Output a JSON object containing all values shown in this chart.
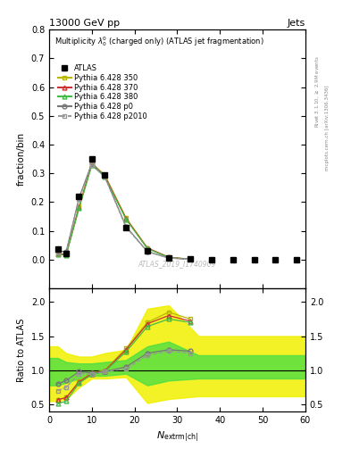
{
  "title_top": "13000 GeV pp",
  "title_right": "Jets",
  "plot_title": "Multiplicity $\\lambda_0^0$ (charged only) (ATLAS jet fragmentation)",
  "xlabel": "$N_{\\mathrm{extrm|ch|}}$",
  "ylabel_main": "fraction/bin",
  "ylabel_ratio": "Ratio to ATLAS",
  "watermark": "ATLAS_2019_I1740909",
  "right_label_top": "Rivet 3.1.10, $\\geq$ 2.9M events",
  "right_label_bot": "mcplots.cern.ch [arXiv:1306.3436]",
  "atlas_x": [
    2,
    4,
    7,
    10,
    13,
    18,
    23,
    28,
    33,
    38,
    43,
    48,
    53,
    58
  ],
  "atlas_y": [
    0.035,
    0.022,
    0.22,
    0.35,
    0.295,
    0.11,
    0.03,
    0.005,
    0.001,
    0.0,
    0.0,
    0.0,
    0.0,
    0.0
  ],
  "p350_x": [
    2,
    4,
    7,
    10,
    13,
    18,
    23,
    28,
    33
  ],
  "p350_y": [
    0.02,
    0.018,
    0.185,
    0.335,
    0.295,
    0.145,
    0.04,
    0.008,
    0.001
  ],
  "p350_color": "#b8b800",
  "p350_label": "Pythia 6.428 350",
  "p370_x": [
    2,
    4,
    7,
    10,
    13,
    18,
    23,
    28,
    33
  ],
  "p370_y": [
    0.02,
    0.018,
    0.182,
    0.332,
    0.292,
    0.143,
    0.04,
    0.008,
    0.001
  ],
  "p370_color": "#cc3333",
  "p370_label": "Pythia 6.428 370",
  "p380_x": [
    2,
    4,
    7,
    10,
    13,
    18,
    23,
    28,
    33
  ],
  "p380_y": [
    0.018,
    0.016,
    0.178,
    0.328,
    0.288,
    0.14,
    0.038,
    0.007,
    0.001
  ],
  "p380_color": "#44bb44",
  "p380_label": "Pythia 6.428 380",
  "p0_x": [
    2,
    4,
    7,
    10,
    13,
    18,
    23,
    28,
    33
  ],
  "p0_y": [
    0.028,
    0.028,
    0.215,
    0.335,
    0.29,
    0.115,
    0.028,
    0.005,
    0.001
  ],
  "p0_color": "#777777",
  "p0_label": "Pythia 6.428 p0",
  "p2010_x": [
    2,
    4,
    7,
    10,
    13,
    18,
    23,
    28,
    33
  ],
  "p2010_y": [
    0.025,
    0.025,
    0.21,
    0.33,
    0.288,
    0.112,
    0.027,
    0.005,
    0.001
  ],
  "p2010_color": "#999999",
  "p2010_label": "Pythia 6.428 p2010",
  "ratio_x": [
    2,
    4,
    7,
    10,
    13,
    18,
    23,
    28,
    33
  ],
  "ratio_p350": [
    0.57,
    0.6,
    0.84,
    0.96,
    1.0,
    1.32,
    1.7,
    1.85,
    1.75
  ],
  "ratio_p370": [
    0.57,
    0.6,
    0.83,
    0.95,
    0.99,
    1.3,
    1.68,
    1.8,
    1.72
  ],
  "ratio_p380": [
    0.51,
    0.55,
    0.81,
    0.94,
    0.98,
    1.27,
    1.64,
    1.75,
    1.7
  ],
  "ratio_p0": [
    0.8,
    0.85,
    0.98,
    0.96,
    0.98,
    1.05,
    1.25,
    1.3,
    1.28
  ],
  "ratio_p2010": [
    0.7,
    0.75,
    0.95,
    0.94,
    0.98,
    1.02,
    1.22,
    1.28,
    1.25
  ],
  "band_yellow_x": [
    0,
    2,
    4,
    7,
    10,
    13,
    18,
    23,
    28,
    35,
    60
  ],
  "band_yellow_lo": [
    0.55,
    0.55,
    0.58,
    0.75,
    0.88,
    0.88,
    0.9,
    0.52,
    0.58,
    0.62,
    0.62
  ],
  "band_yellow_hi": [
    1.35,
    1.35,
    1.25,
    1.2,
    1.2,
    1.25,
    1.3,
    1.9,
    1.95,
    1.5,
    1.5
  ],
  "band_green_x": [
    0,
    2,
    4,
    7,
    10,
    13,
    18,
    23,
    28,
    35,
    60
  ],
  "band_green_lo": [
    0.78,
    0.78,
    0.82,
    0.88,
    0.92,
    0.92,
    0.95,
    0.78,
    0.85,
    0.88,
    0.88
  ],
  "band_green_hi": [
    1.18,
    1.18,
    1.12,
    1.1,
    1.1,
    1.12,
    1.15,
    1.35,
    1.42,
    1.22,
    1.22
  ],
  "main_ylim": [
    -0.1,
    0.8
  ],
  "ratio_ylim": [
    0.4,
    2.2
  ],
  "xlim": [
    0,
    60
  ],
  "main_yticks": [
    0.0,
    0.1,
    0.2,
    0.3,
    0.4,
    0.5,
    0.6,
    0.7,
    0.8
  ],
  "ratio_yticks": [
    0.5,
    1.0,
    1.5,
    2.0
  ],
  "xticks": [
    0,
    10,
    20,
    30,
    40,
    50,
    60
  ]
}
